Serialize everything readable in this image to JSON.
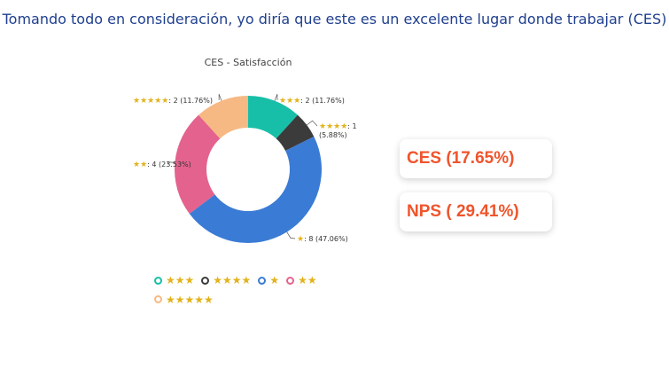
{
  "header": {
    "question": "Tomando todo en consideración, yo diría que este es un excelente lugar donde trabajar (CES)"
  },
  "chart_data": {
    "type": "pie",
    "title": "CES - Satisfacción",
    "slices": [
      {
        "label": "★★★",
        "stars": 3,
        "value": 2,
        "percent": "11.76%",
        "color": "#17bfa8"
      },
      {
        "label": "★★★★",
        "stars": 4,
        "value": 1,
        "percent": "5.88%",
        "color": "#3b3b3b"
      },
      {
        "label": "★",
        "stars": 1,
        "value": 8,
        "percent": "47.06%",
        "color": "#3a7bd5"
      },
      {
        "label": "★★",
        "stars": 2,
        "value": 4,
        "percent": "23.53%",
        "color": "#e4628e"
      },
      {
        "label": "★★★★★",
        "stars": 5,
        "value": 2,
        "percent": "11.76%",
        "color": "#f7b983"
      }
    ],
    "data_labels": [
      ": 2 (11.76%)",
      ": 1",
      "(5.88%)",
      ": 8 (47.06%)",
      ": 4 (23.53%)",
      ": 2 (11.76%)"
    ],
    "legend": [
      "★★★",
      "★★★★",
      "★",
      "★★",
      "★★★★★"
    ]
  },
  "kpis": {
    "ces": "CES (17.65%)",
    "nps": "NPS ( 29.41%)"
  }
}
